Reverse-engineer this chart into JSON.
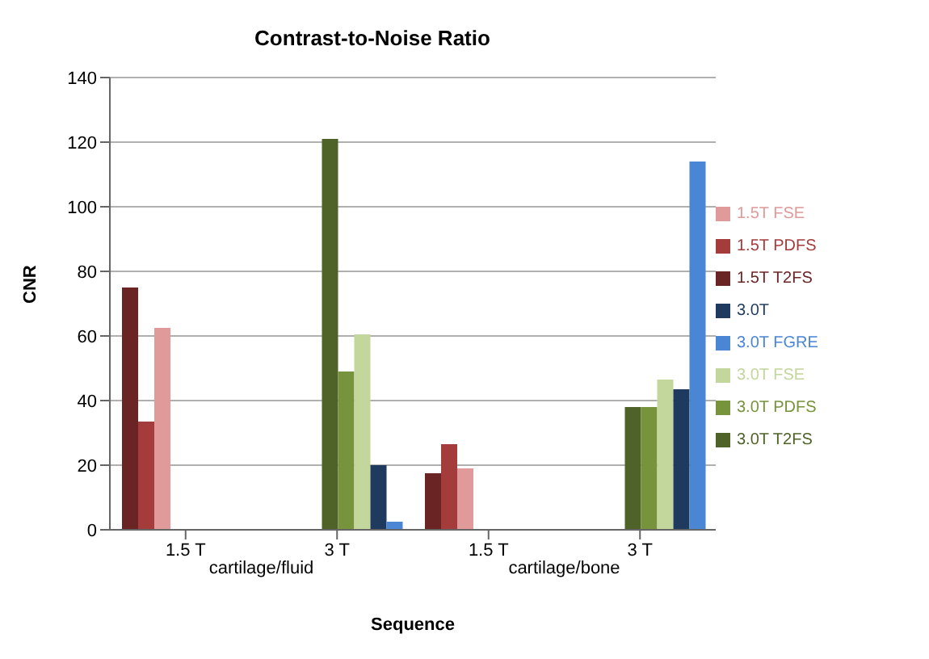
{
  "chart_data": {
    "type": "bar",
    "title": "Contrast-to-Noise Ratio",
    "xlabel": "Sequence",
    "ylabel": "CNR",
    "categories": [
      "1.5 T",
      "3 T",
      "1.5 T",
      "3 T"
    ],
    "annotations": [
      "cartilage/fluid",
      "cartilage/bone"
    ],
    "series": [
      {
        "name": "1.5T T2FS",
        "color": "#6b2424",
        "values": [
          75,
          null,
          17.5,
          null
        ]
      },
      {
        "name": "1.5T PDFS",
        "color": "#a53c3c",
        "values": [
          33.5,
          null,
          26.5,
          null
        ]
      },
      {
        "name": "1.5T FSE",
        "color": "#e09a9a",
        "values": [
          62.5,
          null,
          19,
          null
        ]
      },
      {
        "name": "3.0T T2FS",
        "color": "#4f6228",
        "values": [
          null,
          121,
          null,
          38
        ]
      },
      {
        "name": "3.0T PDFS",
        "color": "#77933c",
        "values": [
          null,
          49,
          null,
          38
        ]
      },
      {
        "name": "3.0T FSE",
        "color": "#c3d69b",
        "values": [
          null,
          60.5,
          null,
          46.5
        ]
      },
      {
        "name": "3.0T",
        "color": "#1f3a5f",
        "values": [
          null,
          20,
          null,
          43.5
        ]
      },
      {
        "name": "3.0T FGRE",
        "color": "#4a86d4",
        "values": [
          null,
          2.5,
          null,
          114
        ]
      }
    ],
    "ylim": [
      0,
      140
    ],
    "yticks": [
      0,
      20,
      40,
      60,
      80,
      100,
      120,
      140
    ],
    "grid": "y",
    "legend": "right"
  }
}
